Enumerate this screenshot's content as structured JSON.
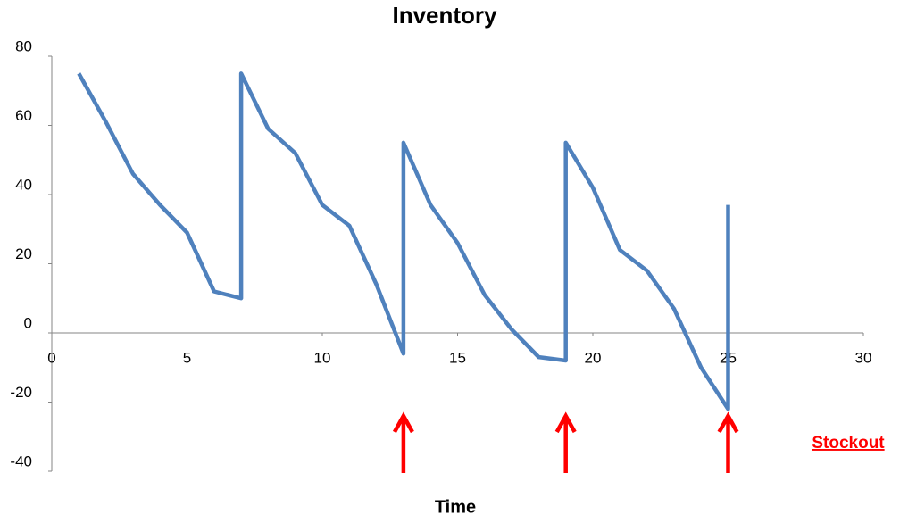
{
  "chart_data": {
    "type": "line",
    "title": "Inventory",
    "x_label": "Time",
    "x": [
      1,
      2,
      3,
      4,
      5,
      6,
      7,
      7,
      8,
      9,
      10,
      11,
      12,
      13,
      13,
      14,
      15,
      16,
      17,
      18,
      19,
      19,
      20,
      21,
      22,
      23,
      24,
      25,
      25
    ],
    "series": [
      {
        "name": "Inventory",
        "color": "#4f81bd",
        "values": [
          75,
          61,
          46,
          37,
          29,
          12,
          10,
          75,
          59,
          52,
          37,
          31,
          14,
          -6,
          55,
          37,
          26,
          11,
          1,
          -7,
          -8,
          55,
          42,
          24,
          18,
          7,
          -10,
          -22,
          37
        ]
      }
    ],
    "xlim": [
      0,
      30
    ],
    "xticks": [
      0,
      5,
      10,
      15,
      20,
      25,
      30
    ],
    "ylim": [
      -40,
      80
    ],
    "yticks": [
      -40,
      -20,
      0,
      20,
      40,
      60,
      80
    ],
    "annotation": {
      "text": "Stockout",
      "color": "#ff0000",
      "x": [
        13,
        19,
        25
      ]
    }
  }
}
